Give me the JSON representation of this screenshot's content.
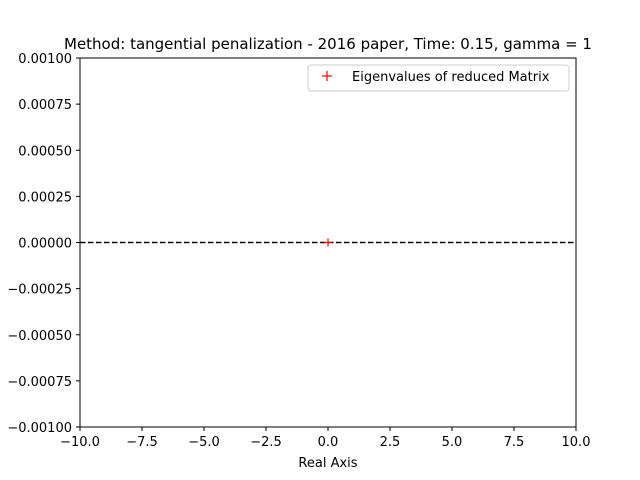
{
  "chart_data": {
    "type": "scatter",
    "title": "Method: tangential penalization - 2016 paper, Time: 0.15, gamma = 1",
    "xlabel": "Real Axis",
    "ylabel": "",
    "xlim": [
      -10,
      10
    ],
    "ylim": [
      -0.001,
      0.001
    ],
    "xticks": [
      -10,
      -7.5,
      -5,
      -2.5,
      0,
      2.5,
      5,
      7.5,
      10
    ],
    "xtick_labels": [
      "−10.0",
      "−7.5",
      "−5.0",
      "−2.5",
      "0.0",
      "2.5",
      "5.0",
      "7.5",
      "10.0"
    ],
    "yticks": [
      -0.001,
      -0.00075,
      -0.0005,
      -0.00025,
      0,
      0.00025,
      0.0005,
      0.00075,
      0.001
    ],
    "ytick_labels": [
      "−0.00100",
      "−0.00075",
      "−0.00050",
      "−0.00025",
      "0.00000",
      "0.00025",
      "0.00050",
      "0.00075",
      "0.00100"
    ],
    "grid": false,
    "legend_position": "top-right",
    "reference_line": {
      "y": 0,
      "style": "dashed",
      "color": "#000000"
    },
    "series": [
      {
        "name": "Eigenvalues of reduced Matrix",
        "marker": "+",
        "color": "#ff0000",
        "x": [
          0
        ],
        "y": [
          0
        ]
      }
    ]
  }
}
